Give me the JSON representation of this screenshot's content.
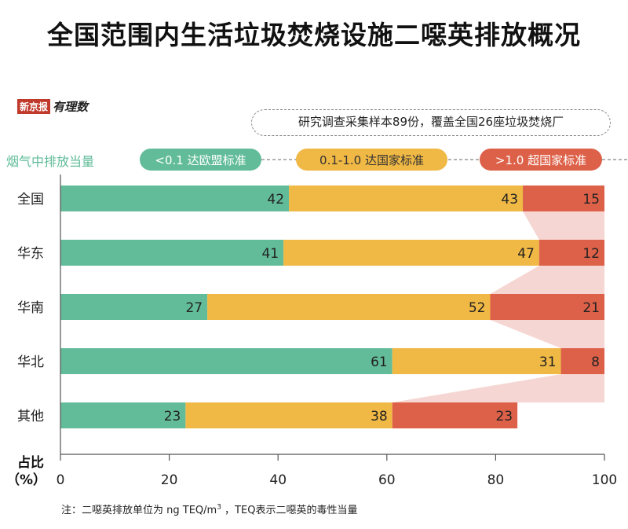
{
  "title": "全国范围内生活垃圾焚烧设施二噁英排放概况",
  "logo": {
    "box": "新京报",
    "script": "有理数"
  },
  "note_top": "研究调查采集样本89份，覆盖全国26座垃圾焚烧厂",
  "legend_title": "烟气中排放当量",
  "footnote_prefix": "注：二噁英排放单位为 ng TEQ/m",
  "footnote_sup": "3",
  "footnote_suffix": " ，TEQ表示二噁英的毒性当量",
  "colors": {
    "green": "#62bc9a",
    "yellow": "#f0b844",
    "red": "#dd6048",
    "band": "#f6d6d2"
  },
  "chart_data": {
    "type": "bar",
    "orientation": "horizontal",
    "stacked": true,
    "categories": [
      "全国",
      "华东",
      "华南",
      "华北",
      "其他"
    ],
    "series": [
      {
        "name": "<0.1  达欧盟标准",
        "color": "#62bc9a",
        "values": [
          42,
          41,
          27,
          61,
          23
        ]
      },
      {
        "name": "0.1-1.0  达国家标准",
        "color": "#f0b844",
        "values": [
          43,
          47,
          52,
          31,
          38
        ]
      },
      {
        "name": ">1.0  超国家标准",
        "color": "#dd6048",
        "values": [
          15,
          12,
          21,
          8,
          23
        ]
      }
    ],
    "xlim": [
      0,
      100
    ],
    "xticks": [
      0,
      20,
      40,
      60,
      80,
      100
    ],
    "ylabel": "占比（%）",
    "ylabel_line1": "占比",
    "ylabel_line2": "（%）",
    "legend_position": "top"
  }
}
